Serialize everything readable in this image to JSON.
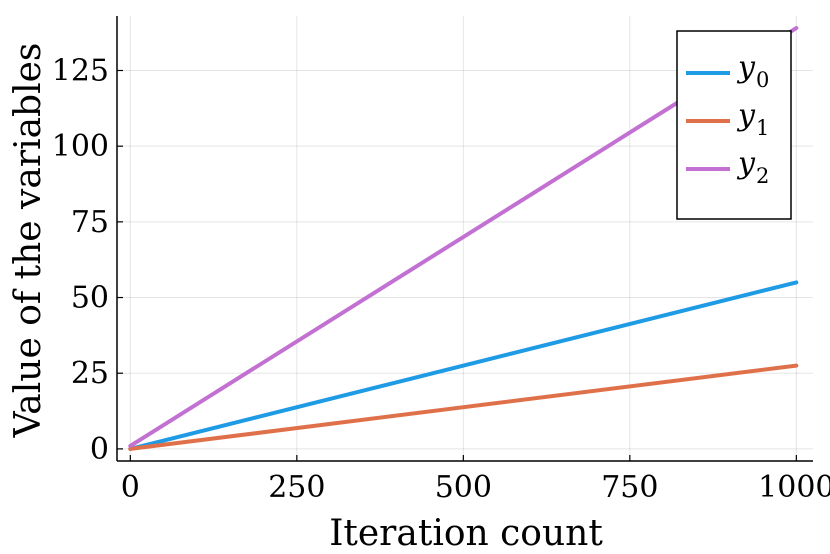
{
  "chart_data": {
    "type": "line",
    "title": "",
    "xlabel": "Iteration count",
    "ylabel": "Value of the variables",
    "xlim": [
      -20,
      1025
    ],
    "ylim": [
      -4,
      143
    ],
    "xticks": [
      0,
      250,
      500,
      750,
      1000
    ],
    "xtick_labels": [
      "0",
      "250",
      "500",
      "750",
      "1000"
    ],
    "yticks": [
      0,
      25,
      50,
      75,
      100,
      125
    ],
    "ytick_labels": [
      "0",
      "25",
      "50",
      "75",
      "100",
      "125"
    ],
    "grid": true,
    "legend_position": "top-right",
    "series": [
      {
        "name": "y0",
        "base": "y",
        "sub": "0",
        "color": "#1f9be6",
        "x": [
          0,
          1000
        ],
        "y": [
          0,
          55
        ]
      },
      {
        "name": "y1",
        "base": "y",
        "sub": "1",
        "color": "#e0704a",
        "x": [
          0,
          1000
        ],
        "y": [
          0,
          27.5
        ]
      },
      {
        "name": "y2",
        "base": "y",
        "sub": "2",
        "color": "#c271d2",
        "x": [
          0,
          1000
        ],
        "y": [
          1,
          139
        ]
      }
    ]
  }
}
